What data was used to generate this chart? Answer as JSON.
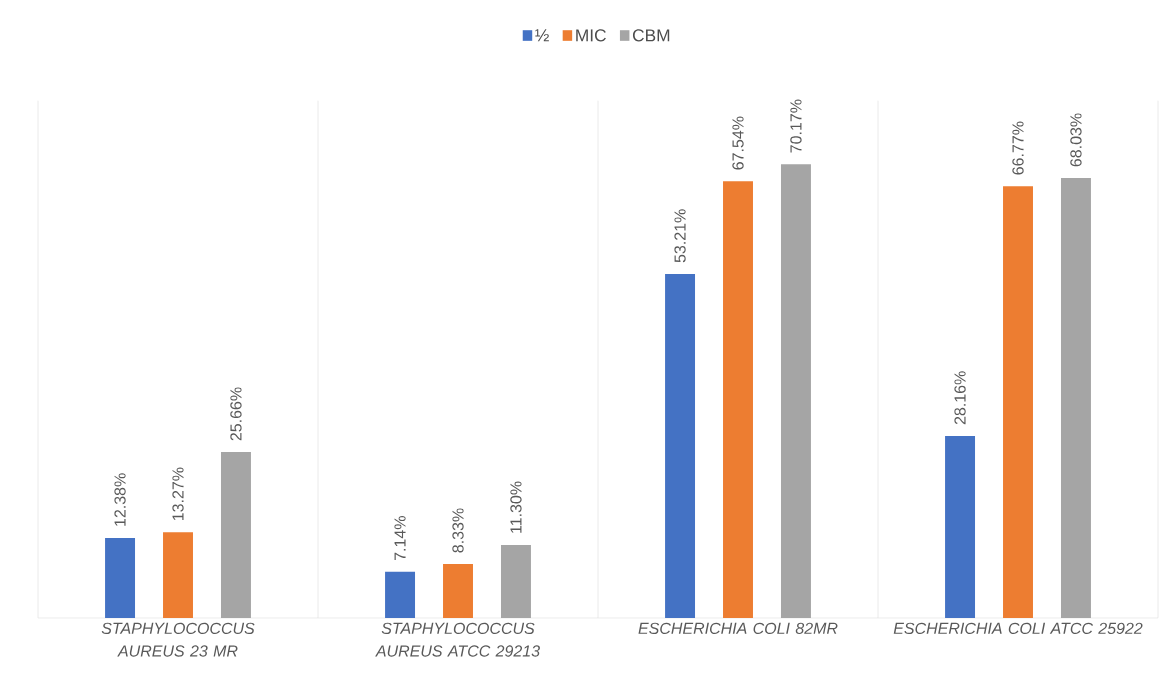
{
  "chart_data": {
    "type": "bar",
    "categories": [
      "STAPHYLOCOCCUS AUREUS 23 MR",
      "STAPHYLOCOCCUS AUREUS ATCC 29213",
      "ESCHERICHIA COLI 82MR",
      "ESCHERICHIA COLI ATCC 25922"
    ],
    "series": [
      {
        "name": "½",
        "color": "#4472c4",
        "values": [
          12.38,
          7.14,
          53.21,
          28.16
        ],
        "value_labels": [
          "12.38%",
          "7.14%",
          "53.21%",
          "28.16%"
        ]
      },
      {
        "name": "MIC",
        "color": "#ed7d31",
        "values": [
          13.27,
          8.33,
          67.54,
          66.77
        ],
        "value_labels": [
          "13.27%",
          "8.33%",
          "67.54%",
          "66.77%"
        ]
      },
      {
        "name": "CBM",
        "color": "#a5a5a5",
        "values": [
          25.66,
          11.3,
          70.17,
          68.03
        ],
        "value_labels": [
          "25.66%",
          "11.30%",
          "70.17%",
          "68.03%"
        ]
      }
    ],
    "ylim": [
      0,
      80
    ],
    "grid": "x",
    "legend": "top",
    "tick_labels": "x"
  }
}
